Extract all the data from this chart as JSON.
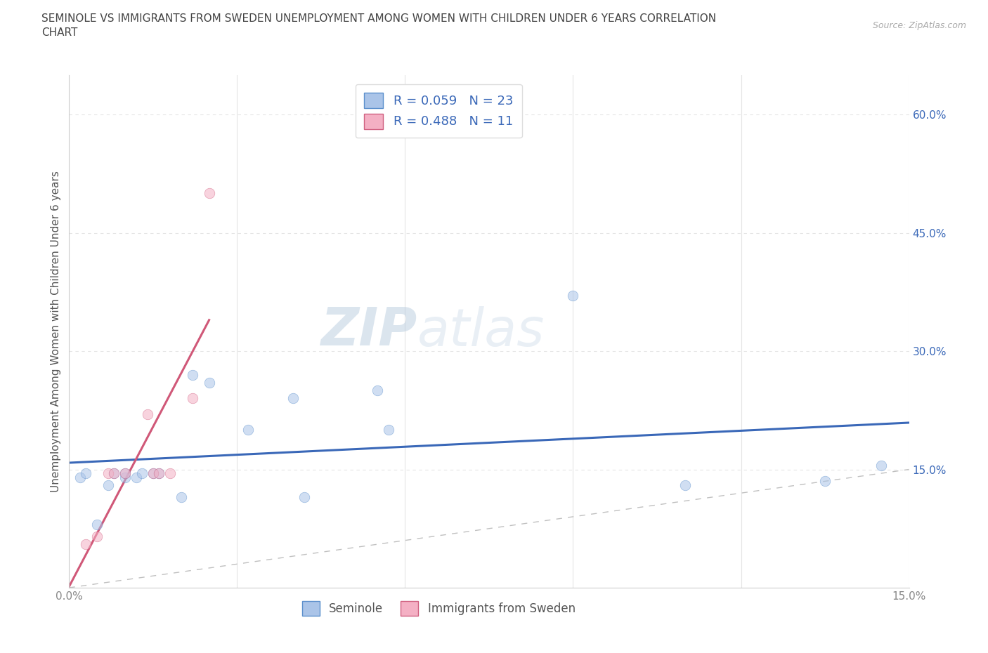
{
  "title_line1": "SEMINOLE VS IMMIGRANTS FROM SWEDEN UNEMPLOYMENT AMONG WOMEN WITH CHILDREN UNDER 6 YEARS CORRELATION",
  "title_line2": "CHART",
  "source": "Source: ZipAtlas.com",
  "ylabel": "Unemployment Among Women with Children Under 6 years",
  "xlim": [
    0.0,
    0.15
  ],
  "ylim": [
    0.0,
    0.65
  ],
  "xticks": [
    0.0,
    0.03,
    0.06,
    0.09,
    0.12,
    0.15
  ],
  "xtick_labels": [
    "0.0%",
    "",
    "",
    "",
    "",
    "15.0%"
  ],
  "ytick_positions": [
    0.15,
    0.3,
    0.45,
    0.6
  ],
  "ytick_labels": [
    "15.0%",
    "30.0%",
    "45.0%",
    "60.0%"
  ],
  "seminole_x": [
    0.002,
    0.003,
    0.005,
    0.007,
    0.008,
    0.01,
    0.01,
    0.012,
    0.013,
    0.015,
    0.016,
    0.02,
    0.022,
    0.025,
    0.032,
    0.04,
    0.042,
    0.055,
    0.057,
    0.09,
    0.11,
    0.135,
    0.145
  ],
  "seminole_y": [
    0.14,
    0.145,
    0.08,
    0.13,
    0.145,
    0.14,
    0.145,
    0.14,
    0.145,
    0.145,
    0.145,
    0.115,
    0.27,
    0.26,
    0.2,
    0.24,
    0.115,
    0.25,
    0.2,
    0.37,
    0.13,
    0.135,
    0.155
  ],
  "sweden_x": [
    0.003,
    0.005,
    0.007,
    0.008,
    0.01,
    0.014,
    0.015,
    0.016,
    0.018,
    0.022,
    0.025
  ],
  "sweden_y": [
    0.055,
    0.065,
    0.145,
    0.145,
    0.145,
    0.22,
    0.145,
    0.145,
    0.145,
    0.24,
    0.5
  ],
  "seminole_color": "#aac4e8",
  "sweden_color": "#f4b0c4",
  "seminole_edge": "#5b8fcc",
  "sweden_edge": "#d06080",
  "trend_seminole_color": "#3a68b8",
  "trend_sweden_color": "#d05878",
  "diagonal_color": "#c0c0c0",
  "R_seminole": 0.059,
  "N_seminole": 23,
  "R_sweden": 0.488,
  "N_sweden": 11,
  "legend_label_1": "Seminole",
  "legend_label_2": "Immigrants from Sweden",
  "background_color": "#ffffff",
  "grid_color": "#e4e4e4",
  "title_color": "#444444",
  "axis_label_color": "#555555",
  "tick_color": "#888888",
  "watermark_zip": "ZIP",
  "watermark_atlas": "atlas",
  "marker_size": 110,
  "alpha": 0.55
}
